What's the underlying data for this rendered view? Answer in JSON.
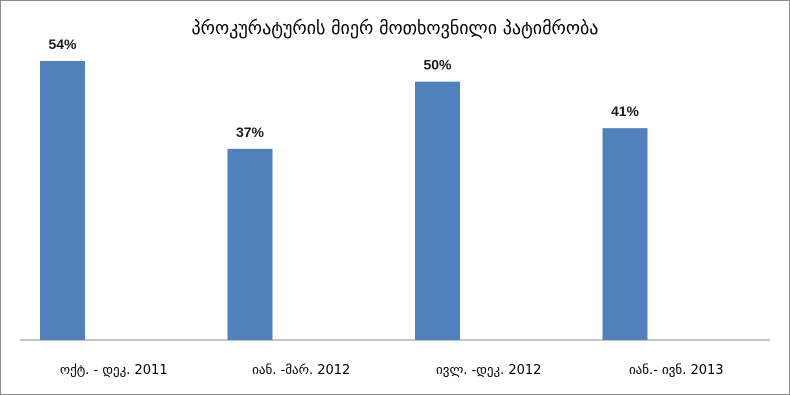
{
  "chart_data": {
    "type": "bar",
    "title": "პროკურატურის მიერ მოთხოვნილი პატიმრობა",
    "categories": [
      "ოქტ. - დეკ. 2011",
      "იან. -მარ. 2012",
      "ივლ. -დეკ. 2012",
      "იან.- ივნ. 2013"
    ],
    "values": [
      54,
      37,
      50,
      41
    ],
    "data_labels": [
      "54%",
      "37%",
      "50%",
      "41%"
    ],
    "unit": "%",
    "ylim": [
      0,
      60
    ],
    "grid": false,
    "legend": "none",
    "bar_color": "#4f81bd"
  }
}
